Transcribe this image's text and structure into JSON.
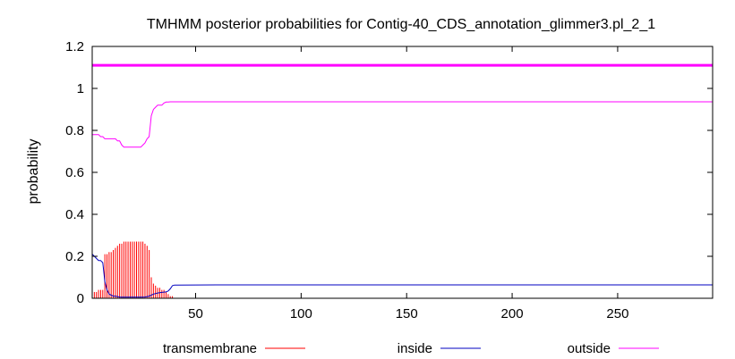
{
  "chart_data": {
    "type": "line",
    "title": "TMHMM posterior probabilities for Contig-40_CDS_annotation_glimmer3.pl_2_1",
    "xlabel": "",
    "ylabel": "probability",
    "xlim": [
      1,
      295
    ],
    "ylim": [
      0,
      1.2
    ],
    "xticks": [
      50,
      100,
      150,
      200,
      250
    ],
    "yticks": [
      0,
      0.2,
      0.4,
      0.6,
      0.8,
      1,
      1.2
    ],
    "ytick_labels": [
      "0",
      "0.2",
      "0.4",
      "0.6",
      "0.8",
      "1",
      "1.2"
    ],
    "grid": false,
    "legend_position": "bottom",
    "topline": {
      "y": 1.11,
      "color": "#ff00ff"
    },
    "series": [
      {
        "name": "transmembrane",
        "color": "#ff0000",
        "style": "impulses",
        "x": [
          1,
          2,
          3,
          4,
          5,
          6,
          7,
          8,
          9,
          10,
          11,
          12,
          13,
          14,
          15,
          16,
          17,
          18,
          19,
          20,
          21,
          22,
          23,
          24,
          25,
          26,
          27,
          28,
          29,
          30,
          31,
          32,
          33,
          34,
          35,
          36,
          37,
          38,
          39
        ],
        "y": [
          0.02,
          0.03,
          0.03,
          0.04,
          0.04,
          0.04,
          0.21,
          0.21,
          0.22,
          0.22,
          0.23,
          0.24,
          0.25,
          0.26,
          0.26,
          0.27,
          0.27,
          0.27,
          0.27,
          0.27,
          0.27,
          0.27,
          0.27,
          0.27,
          0.27,
          0.26,
          0.25,
          0.23,
          0.1,
          0.07,
          0.06,
          0.05,
          0.05,
          0.04,
          0.04,
          0.03,
          0.02,
          0.01,
          0.01
        ]
      },
      {
        "name": "inside",
        "color": "#0000c0",
        "style": "line",
        "x": [
          1,
          2,
          3,
          4,
          5,
          6,
          7,
          8,
          9,
          10,
          11,
          12,
          13,
          14,
          15,
          16,
          17,
          18,
          19,
          20,
          22,
          24,
          26,
          27,
          28,
          29,
          30,
          32,
          34,
          36,
          37,
          38,
          39,
          40,
          60,
          100,
          150,
          200,
          250,
          295
        ],
        "y": [
          0.21,
          0.2,
          0.19,
          0.18,
          0.18,
          0.17,
          0.08,
          0.04,
          0.02,
          0.015,
          0.01,
          0.01,
          0.008,
          0.006,
          0.005,
          0.005,
          0.005,
          0.005,
          0.005,
          0.005,
          0.005,
          0.005,
          0.006,
          0.008,
          0.01,
          0.015,
          0.02,
          0.025,
          0.028,
          0.03,
          0.035,
          0.045,
          0.06,
          0.063,
          0.064,
          0.064,
          0.064,
          0.064,
          0.064,
          0.064
        ]
      },
      {
        "name": "outside",
        "color": "#ff00ff",
        "style": "line",
        "x": [
          1,
          2,
          3,
          4,
          5,
          6,
          7,
          8,
          9,
          10,
          11,
          12,
          13,
          14,
          15,
          16,
          17,
          18,
          19,
          20,
          21,
          22,
          23,
          24,
          25,
          26,
          27,
          28,
          29,
          30,
          31,
          32,
          33,
          34,
          35,
          36,
          37,
          38,
          39,
          40,
          60,
          100,
          150,
          200,
          250,
          295
        ],
        "y": [
          0.78,
          0.78,
          0.78,
          0.78,
          0.77,
          0.77,
          0.76,
          0.76,
          0.76,
          0.76,
          0.76,
          0.76,
          0.75,
          0.75,
          0.73,
          0.72,
          0.72,
          0.72,
          0.72,
          0.72,
          0.72,
          0.72,
          0.72,
          0.72,
          0.73,
          0.74,
          0.76,
          0.77,
          0.87,
          0.9,
          0.91,
          0.92,
          0.92,
          0.92,
          0.93,
          0.935,
          0.935,
          0.936,
          0.936,
          0.936,
          0.936,
          0.936,
          0.936,
          0.936,
          0.936,
          0.936
        ]
      }
    ]
  }
}
